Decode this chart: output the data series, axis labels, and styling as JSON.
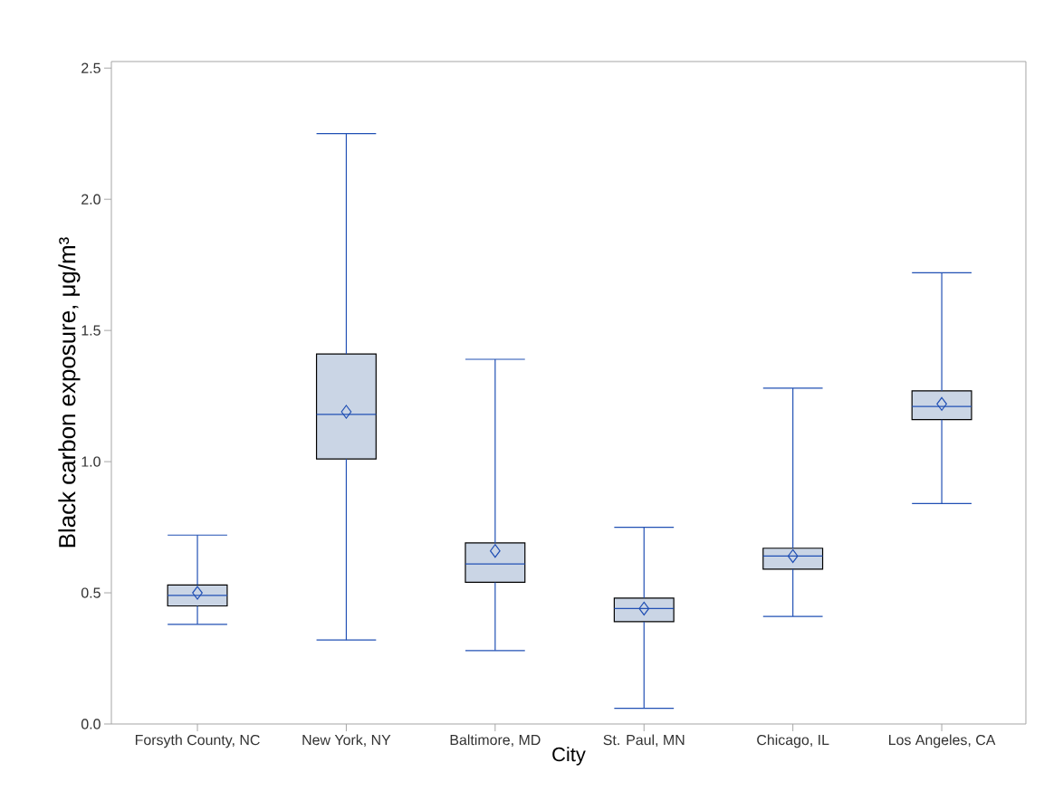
{
  "chart_data": {
    "type": "box",
    "xlabel": "City",
    "ylabel": "Black carbon exposure, μg/m³",
    "categories": [
      "Forsyth County, NC",
      "New York, NY",
      "Baltimore, MD",
      "St. Paul, MN",
      "Chicago, IL",
      "Los Angeles, CA"
    ],
    "boxes": [
      {
        "low": 0.38,
        "q1": 0.45,
        "median": 0.49,
        "q3": 0.53,
        "high": 0.72,
        "mean": 0.5
      },
      {
        "low": 0.32,
        "q1": 1.01,
        "median": 1.18,
        "q3": 1.41,
        "high": 2.25,
        "mean": 1.19
      },
      {
        "low": 0.28,
        "q1": 0.54,
        "median": 0.61,
        "q3": 0.69,
        "high": 1.39,
        "mean": 0.66
      },
      {
        "low": 0.06,
        "q1": 0.39,
        "median": 0.44,
        "q3": 0.48,
        "high": 0.75,
        "mean": 0.44
      },
      {
        "low": 0.41,
        "q1": 0.59,
        "median": 0.64,
        "q3": 0.67,
        "high": 1.28,
        "mean": 0.64
      },
      {
        "low": 0.84,
        "q1": 1.16,
        "median": 1.21,
        "q3": 1.27,
        "high": 1.72,
        "mean": 1.22
      }
    ],
    "color": "#cad5e5",
    "ylim": [
      0,
      2.525
    ],
    "yticks": [
      {
        "value": 0,
        "label": "0.0"
      },
      {
        "value": 0.5,
        "label": "0.5"
      },
      {
        "value": 1,
        "label": "1.0"
      },
      {
        "value": 1.5,
        "label": "1.5"
      },
      {
        "value": 2,
        "label": "2.0"
      },
      {
        "value": 2.5,
        "label": "2.5"
      }
    ],
    "grid": false
  }
}
